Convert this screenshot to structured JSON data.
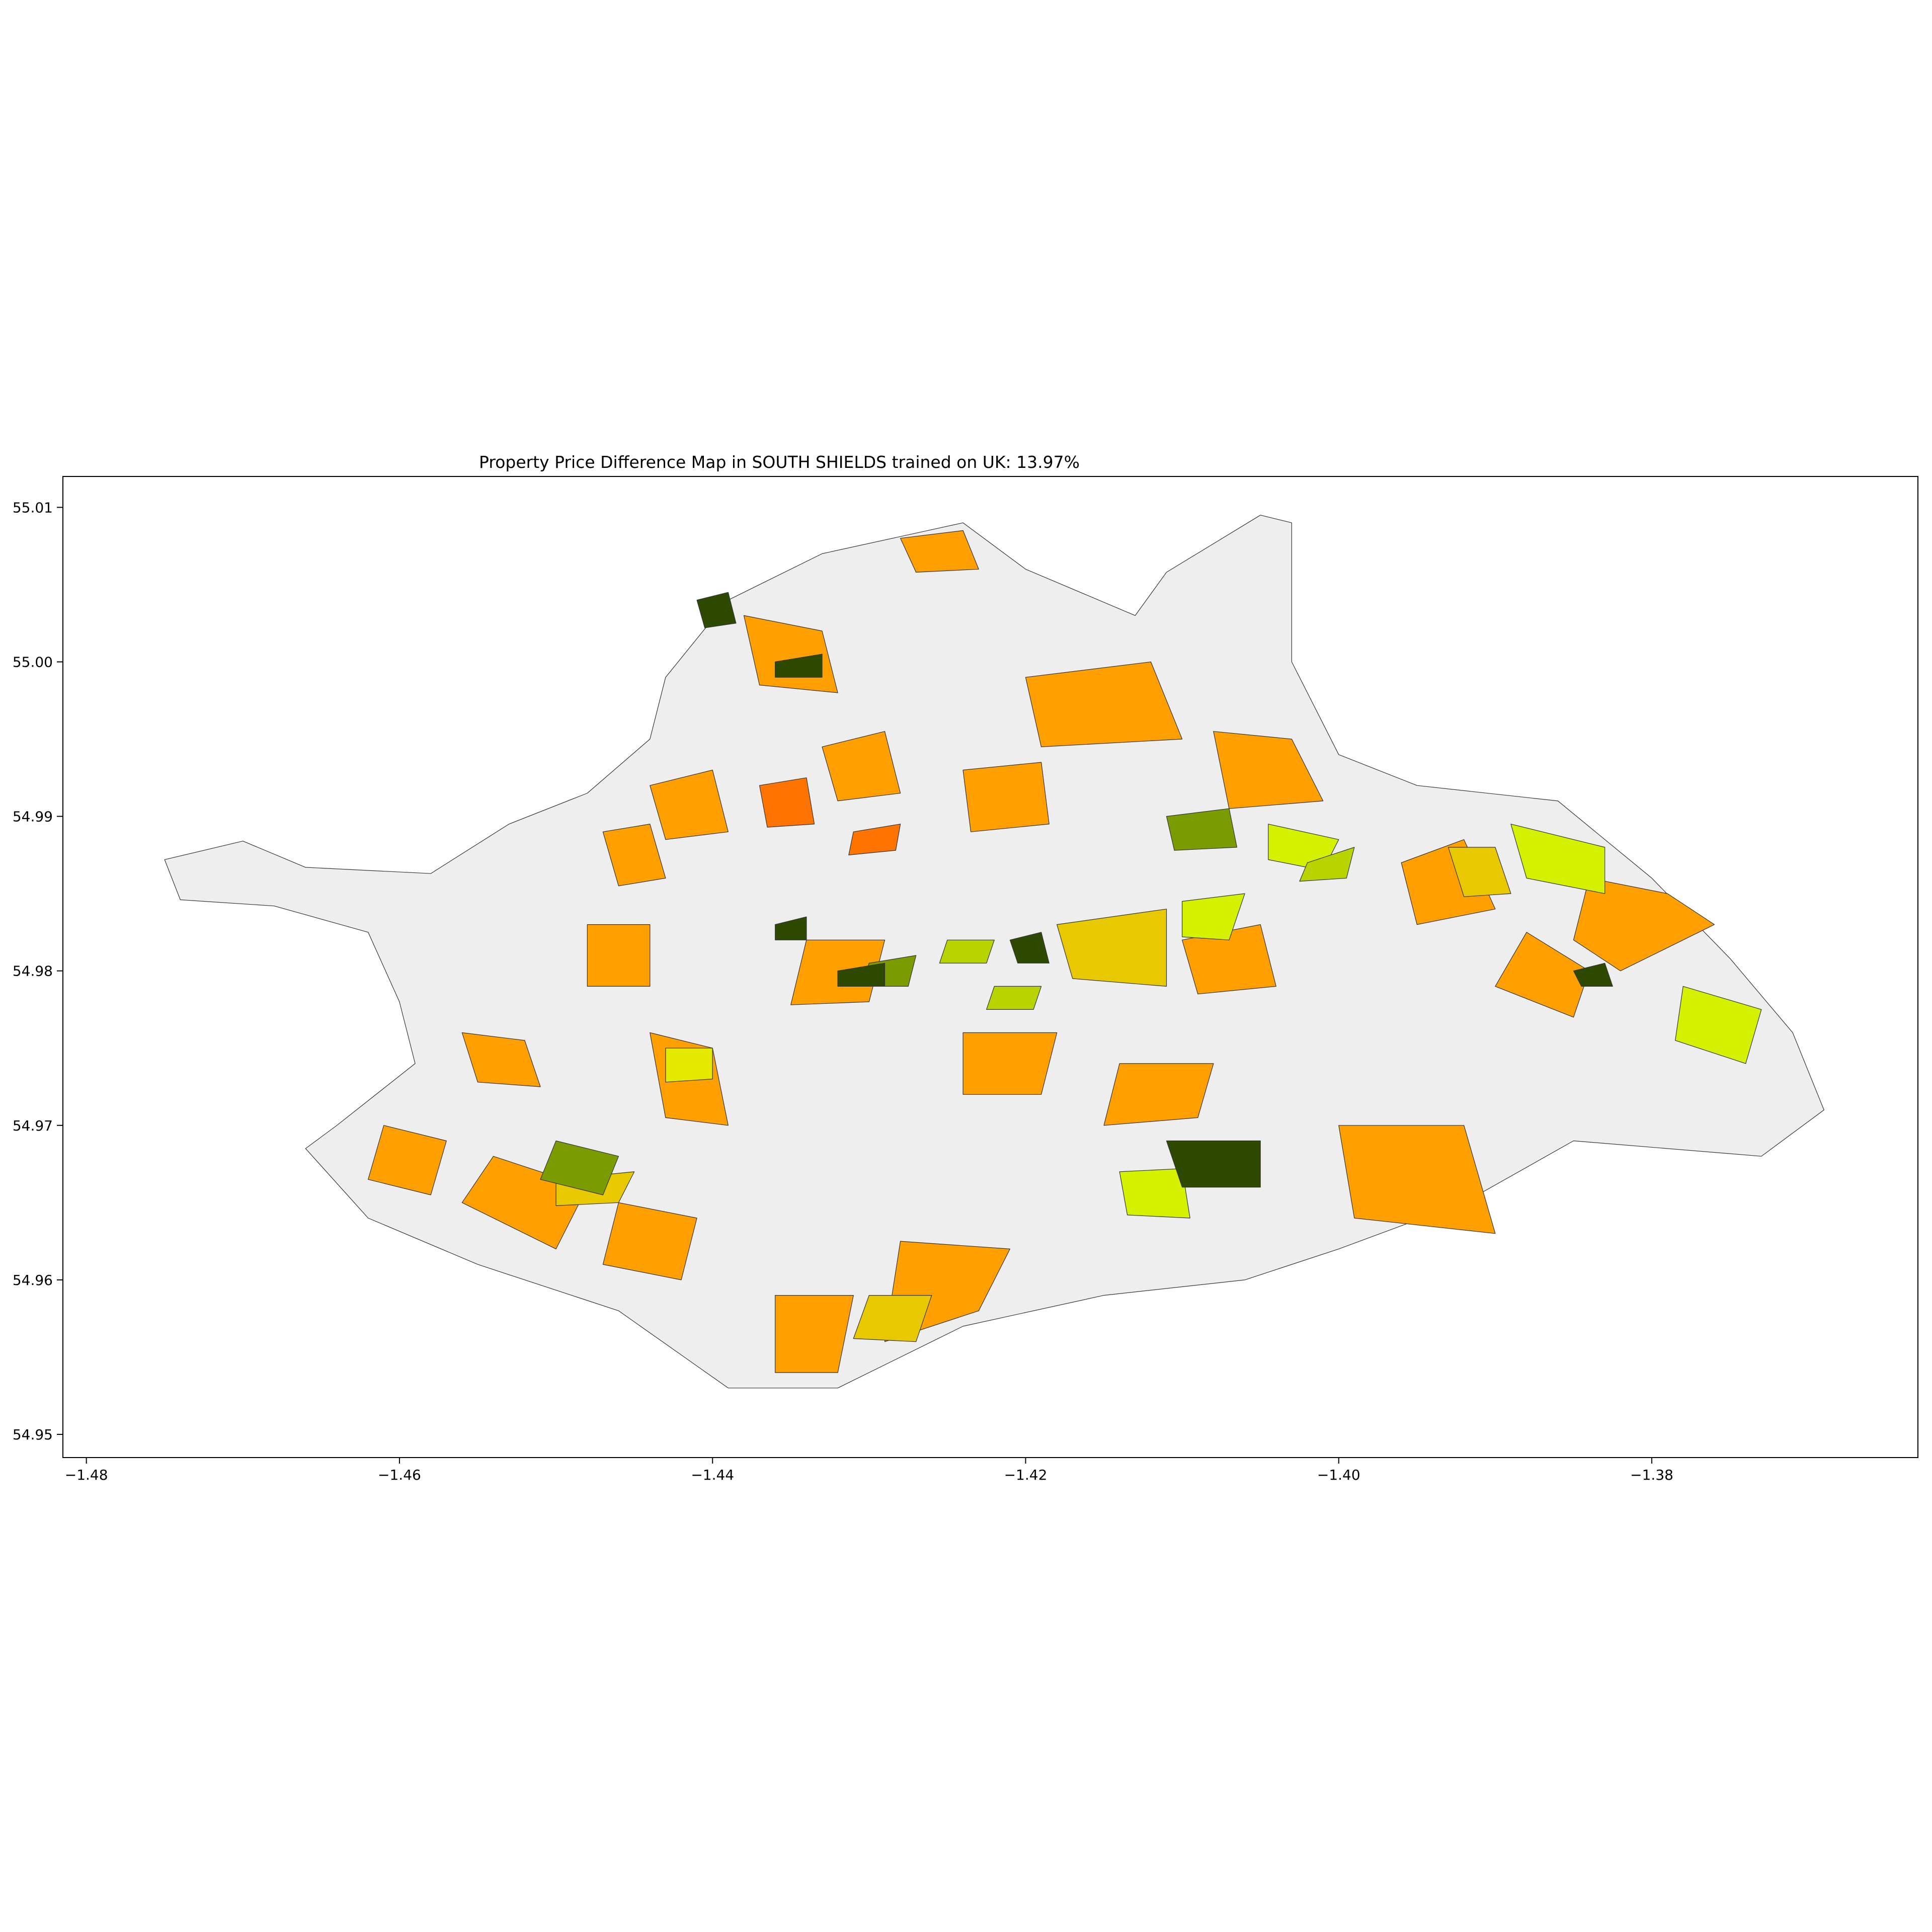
{
  "figure": {
    "title": "Property Price Difference Map in SOUTH SHIELDS trained on UK: 13.97%"
  },
  "chart_data": {
    "type": "choropleth-map",
    "title": "Property Price Difference Map in SOUTH SHIELDS trained on UK: 13.97%",
    "xlim": [
      -1.4815,
      -1.363
    ],
    "ylim": [
      54.9485,
      55.012
    ],
    "x_ticks": [
      -1.48,
      -1.46,
      -1.44,
      -1.42,
      -1.4,
      -1.38
    ],
    "x_tick_labels": [
      "−1.48",
      "−1.46",
      "−1.44",
      "−1.42",
      "−1.40",
      "−1.38"
    ],
    "y_ticks": [
      54.95,
      54.96,
      54.97,
      54.98,
      54.99,
      55.0,
      55.01
    ],
    "y_tick_labels": [
      "54.95",
      "54.96",
      "54.97",
      "54.98",
      "54.99",
      "55.00",
      "55.01"
    ],
    "grid": false,
    "legend": "none",
    "no_data_color": "#eeeeee",
    "outline": [
      [
        -1.475,
        54.9872
      ],
      [
        -1.47,
        54.9884
      ],
      [
        -1.466,
        54.9867
      ],
      [
        -1.458,
        54.9863
      ],
      [
        -1.453,
        54.9895
      ],
      [
        -1.448,
        54.9915
      ],
      [
        -1.444,
        54.995
      ],
      [
        -1.443,
        54.999
      ],
      [
        -1.439,
        55.004
      ],
      [
        -1.433,
        55.007
      ],
      [
        -1.424,
        55.009
      ],
      [
        -1.42,
        55.006
      ],
      [
        -1.413,
        55.003
      ],
      [
        -1.411,
        55.0058
      ],
      [
        -1.405,
        55.0095
      ],
      [
        -1.403,
        55.009
      ],
      [
        -1.403,
        55.0
      ],
      [
        -1.4,
        54.994
      ],
      [
        -1.395,
        54.992
      ],
      [
        -1.386,
        54.991
      ],
      [
        -1.38,
        54.986
      ],
      [
        -1.375,
        54.9808
      ],
      [
        -1.371,
        54.976
      ],
      [
        -1.369,
        54.971
      ],
      [
        -1.373,
        54.968
      ],
      [
        -1.385,
        54.969
      ],
      [
        -1.392,
        54.965
      ],
      [
        -1.4,
        54.962
      ],
      [
        -1.406,
        54.96
      ],
      [
        -1.415,
        54.959
      ],
      [
        -1.424,
        54.957
      ],
      [
        -1.432,
        54.953
      ],
      [
        -1.439,
        54.953
      ],
      [
        -1.446,
        54.958
      ],
      [
        -1.455,
        54.961
      ],
      [
        -1.462,
        54.964
      ],
      [
        -1.466,
        54.9685
      ],
      [
        -1.464,
        54.97
      ],
      [
        -1.459,
        54.974
      ],
      [
        -1.46,
        54.978
      ],
      [
        -1.462,
        54.9825
      ],
      [
        -1.468,
        54.9842
      ],
      [
        -1.474,
        54.9846
      ]
    ],
    "regions": [
      {
        "c": "#ff9f00",
        "p": [
          [
            -1.438,
            55.003
          ],
          [
            -1.433,
            55.002
          ],
          [
            -1.432,
            54.998
          ],
          [
            -1.437,
            54.9985
          ]
        ]
      },
      {
        "c": "#ff9f00",
        "p": [
          [
            -1.428,
            55.008
          ],
          [
            -1.424,
            55.0085
          ],
          [
            -1.423,
            55.006
          ],
          [
            -1.427,
            55.0058
          ]
        ]
      },
      {
        "c": "#ff9f00",
        "p": [
          [
            -1.42,
            54.999
          ],
          [
            -1.412,
            55.0
          ],
          [
            -1.41,
            54.995
          ],
          [
            -1.419,
            54.9945
          ]
        ]
      },
      {
        "c": "#ff9f00",
        "p": [
          [
            -1.408,
            54.9955
          ],
          [
            -1.403,
            54.995
          ],
          [
            -1.401,
            54.991
          ],
          [
            -1.407,
            54.9905
          ]
        ]
      },
      {
        "c": "#ff9f00",
        "p": [
          [
            -1.396,
            54.987
          ],
          [
            -1.392,
            54.9885
          ],
          [
            -1.39,
            54.984
          ],
          [
            -1.395,
            54.983
          ]
        ]
      },
      {
        "c": "#ff9f00",
        "p": [
          [
            -1.384,
            54.986
          ],
          [
            -1.379,
            54.985
          ],
          [
            -1.376,
            54.983
          ],
          [
            -1.382,
            54.98
          ],
          [
            -1.385,
            54.982
          ]
        ]
      },
      {
        "c": "#ff9f00",
        "p": [
          [
            -1.388,
            54.9825
          ],
          [
            -1.384,
            54.98
          ],
          [
            -1.385,
            54.977
          ],
          [
            -1.39,
            54.979
          ]
        ]
      },
      {
        "c": "#ff9f00",
        "p": [
          [
            -1.4,
            54.97
          ],
          [
            -1.392,
            54.97
          ],
          [
            -1.39,
            54.963
          ],
          [
            -1.399,
            54.964
          ]
        ]
      },
      {
        "c": "#ff9f00",
        "p": [
          [
            -1.429,
            54.956
          ],
          [
            -1.423,
            54.958
          ],
          [
            -1.421,
            54.962
          ],
          [
            -1.428,
            54.9625
          ]
        ]
      },
      {
        "c": "#ff9f00",
        "p": [
          [
            -1.436,
            54.954
          ],
          [
            -1.432,
            54.954
          ],
          [
            -1.431,
            54.959
          ],
          [
            -1.436,
            54.959
          ]
        ]
      },
      {
        "c": "#ff9f00",
        "p": [
          [
            -1.447,
            54.961
          ],
          [
            -1.442,
            54.96
          ],
          [
            -1.441,
            54.964
          ],
          [
            -1.446,
            54.965
          ]
        ]
      },
      {
        "c": "#ff9f00",
        "p": [
          [
            -1.456,
            54.965
          ],
          [
            -1.45,
            54.962
          ],
          [
            -1.448,
            54.966
          ],
          [
            -1.454,
            54.968
          ]
        ]
      },
      {
        "c": "#ff9f00",
        "p": [
          [
            -1.462,
            54.9665
          ],
          [
            -1.458,
            54.9655
          ],
          [
            -1.457,
            54.969
          ],
          [
            -1.461,
            54.97
          ]
        ]
      },
      {
        "c": "#ff9f00",
        "p": [
          [
            -1.456,
            54.976
          ],
          [
            -1.452,
            54.9755
          ],
          [
            -1.451,
            54.9725
          ],
          [
            -1.455,
            54.9728
          ]
        ]
      },
      {
        "c": "#ff9f00",
        "p": [
          [
            -1.444,
            54.976
          ],
          [
            -1.44,
            54.975
          ],
          [
            -1.439,
            54.97
          ],
          [
            -1.443,
            54.9705
          ]
        ]
      },
      {
        "c": "#ff9f00",
        "p": [
          [
            -1.434,
            54.982
          ],
          [
            -1.429,
            54.982
          ],
          [
            -1.43,
            54.978
          ],
          [
            -1.435,
            54.9778
          ]
        ]
      },
      {
        "c": "#ff9f00",
        "p": [
          [
            -1.424,
            54.976
          ],
          [
            -1.418,
            54.976
          ],
          [
            -1.419,
            54.972
          ],
          [
            -1.424,
            54.972
          ]
        ]
      },
      {
        "c": "#ff9f00",
        "p": [
          [
            -1.414,
            54.974
          ],
          [
            -1.408,
            54.974
          ],
          [
            -1.409,
            54.9705
          ],
          [
            -1.415,
            54.97
          ]
        ]
      },
      {
        "c": "#ff9f00",
        "p": [
          [
            -1.41,
            54.982
          ],
          [
            -1.405,
            54.983
          ],
          [
            -1.404,
            54.979
          ],
          [
            -1.409,
            54.9785
          ]
        ]
      },
      {
        "c": "#ff9f00",
        "p": [
          [
            -1.444,
            54.992
          ],
          [
            -1.44,
            54.993
          ],
          [
            -1.439,
            54.989
          ],
          [
            -1.443,
            54.9885
          ]
        ]
      },
      {
        "c": "#ff9f00",
        "p": [
          [
            -1.433,
            54.9945
          ],
          [
            -1.429,
            54.9955
          ],
          [
            -1.428,
            54.9915
          ],
          [
            -1.432,
            54.991
          ]
        ]
      },
      {
        "c": "#ff9f00",
        "p": [
          [
            -1.424,
            54.993
          ],
          [
            -1.419,
            54.9935
          ],
          [
            -1.4185,
            54.9895
          ],
          [
            -1.4235,
            54.989
          ]
        ]
      },
      {
        "c": "#ff9f00",
        "p": [
          [
            -1.447,
            54.989
          ],
          [
            -1.444,
            54.9895
          ],
          [
            -1.443,
            54.986
          ],
          [
            -1.446,
            54.9855
          ]
        ]
      },
      {
        "c": "#ff9f00",
        "p": [
          [
            -1.448,
            54.983
          ],
          [
            -1.444,
            54.983
          ],
          [
            -1.444,
            54.979
          ],
          [
            -1.448,
            54.979
          ]
        ]
      },
      {
        "c": "#ff7300",
        "p": [
          [
            -1.437,
            54.992
          ],
          [
            -1.434,
            54.9925
          ],
          [
            -1.4335,
            54.9895
          ],
          [
            -1.4365,
            54.9893
          ]
        ]
      },
      {
        "c": "#ff7300",
        "p": [
          [
            -1.431,
            54.989
          ],
          [
            -1.428,
            54.9895
          ],
          [
            -1.4283,
            54.9878
          ],
          [
            -1.4313,
            54.9875
          ]
        ]
      },
      {
        "c": "#e8c800",
        "p": [
          [
            -1.418,
            54.983
          ],
          [
            -1.411,
            54.984
          ],
          [
            -1.411,
            54.979
          ],
          [
            -1.417,
            54.9795
          ]
        ]
      },
      {
        "c": "#e8c800",
        "p": [
          [
            -1.393,
            54.988
          ],
          [
            -1.39,
            54.988
          ],
          [
            -1.389,
            54.985
          ],
          [
            -1.392,
            54.9848
          ]
        ]
      },
      {
        "c": "#e8c800",
        "p": [
          [
            -1.45,
            54.9665
          ],
          [
            -1.445,
            54.967
          ],
          [
            -1.446,
            54.965
          ],
          [
            -1.45,
            54.9648
          ]
        ]
      },
      {
        "c": "#e8c800",
        "p": [
          [
            -1.43,
            54.959
          ],
          [
            -1.426,
            54.959
          ],
          [
            -1.427,
            54.956
          ],
          [
            -1.431,
            54.9562
          ]
        ]
      },
      {
        "c": "#d4f200",
        "p": [
          [
            -1.389,
            54.9895
          ],
          [
            -1.383,
            54.988
          ],
          [
            -1.383,
            54.985
          ],
          [
            -1.388,
            54.986
          ]
        ]
      },
      {
        "c": "#d4f200",
        "p": [
          [
            -1.41,
            54.9845
          ],
          [
            -1.406,
            54.985
          ],
          [
            -1.407,
            54.982
          ],
          [
            -1.41,
            54.9822
          ]
        ]
      },
      {
        "c": "#d4f200",
        "p": [
          [
            -1.4045,
            54.9895
          ],
          [
            -1.4,
            54.9885
          ],
          [
            -1.401,
            54.9865
          ],
          [
            -1.4045,
            54.9872
          ]
        ]
      },
      {
        "c": "#d4f200",
        "p": [
          [
            -1.378,
            54.979
          ],
          [
            -1.373,
            54.9775
          ],
          [
            -1.374,
            54.974
          ],
          [
            -1.3785,
            54.9755
          ]
        ]
      },
      {
        "c": "#d4f200",
        "p": [
          [
            -1.414,
            54.967
          ],
          [
            -1.41,
            54.9672
          ],
          [
            -1.4095,
            54.964
          ],
          [
            -1.4135,
            54.9642
          ]
        ]
      },
      {
        "c": "#e3ea00",
        "p": [
          [
            -1.443,
            54.975
          ],
          [
            -1.44,
            54.975
          ],
          [
            -1.44,
            54.973
          ],
          [
            -1.443,
            54.9728
          ]
        ]
      },
      {
        "c": "#b8d400",
        "p": [
          [
            -1.422,
            54.979
          ],
          [
            -1.419,
            54.979
          ],
          [
            -1.4195,
            54.9775
          ],
          [
            -1.4225,
            54.9775
          ]
        ]
      },
      {
        "c": "#b8d400",
        "p": [
          [
            -1.425,
            54.982
          ],
          [
            -1.422,
            54.982
          ],
          [
            -1.4225,
            54.9805
          ],
          [
            -1.4255,
            54.9805
          ]
        ]
      },
      {
        "c": "#b8d400",
        "p": [
          [
            -1.402,
            54.987
          ],
          [
            -1.399,
            54.988
          ],
          [
            -1.3995,
            54.986
          ],
          [
            -1.4025,
            54.9858
          ]
        ]
      },
      {
        "c": "#7a9c00",
        "p": [
          [
            -1.45,
            54.969
          ],
          [
            -1.446,
            54.968
          ],
          [
            -1.447,
            54.9655
          ],
          [
            -1.451,
            54.9665
          ]
        ]
      },
      {
        "c": "#7a9c00",
        "p": [
          [
            -1.411,
            54.99
          ],
          [
            -1.407,
            54.9905
          ],
          [
            -1.4065,
            54.988
          ],
          [
            -1.4105,
            54.9878
          ]
        ]
      },
      {
        "c": "#7a9c00",
        "p": [
          [
            -1.43,
            54.9805
          ],
          [
            -1.427,
            54.981
          ],
          [
            -1.4275,
            54.979
          ],
          [
            -1.4305,
            54.979
          ]
        ]
      },
      {
        "c": "#2e4a00",
        "p": [
          [
            -1.441,
            55.004
          ],
          [
            -1.439,
            55.0045
          ],
          [
            -1.4385,
            55.0025
          ],
          [
            -1.4405,
            55.0022
          ]
        ]
      },
      {
        "c": "#2e4a00",
        "p": [
          [
            -1.436,
            55.0
          ],
          [
            -1.433,
            55.0005
          ],
          [
            -1.433,
            54.999
          ],
          [
            -1.436,
            54.999
          ]
        ]
      },
      {
        "c": "#2e4a00",
        "p": [
          [
            -1.436,
            54.983
          ],
          [
            -1.434,
            54.9835
          ],
          [
            -1.434,
            54.982
          ],
          [
            -1.436,
            54.982
          ]
        ]
      },
      {
        "c": "#2e4a00",
        "p": [
          [
            -1.432,
            54.98
          ],
          [
            -1.429,
            54.9805
          ],
          [
            -1.429,
            54.979
          ],
          [
            -1.432,
            54.979
          ]
        ]
      },
      {
        "c": "#2e4a00",
        "p": [
          [
            -1.411,
            54.969
          ],
          [
            -1.405,
            54.969
          ],
          [
            -1.405,
            54.966
          ],
          [
            -1.41,
            54.966
          ]
        ]
      },
      {
        "c": "#2e4a00",
        "p": [
          [
            -1.385,
            54.98
          ],
          [
            -1.383,
            54.9805
          ],
          [
            -1.3825,
            54.979
          ],
          [
            -1.3845,
            54.979
          ]
        ]
      },
      {
        "c": "#2e4a00",
        "p": [
          [
            -1.421,
            54.982
          ],
          [
            -1.419,
            54.9825
          ],
          [
            -1.4185,
            54.9805
          ],
          [
            -1.4205,
            54.9805
          ]
        ]
      }
    ]
  }
}
